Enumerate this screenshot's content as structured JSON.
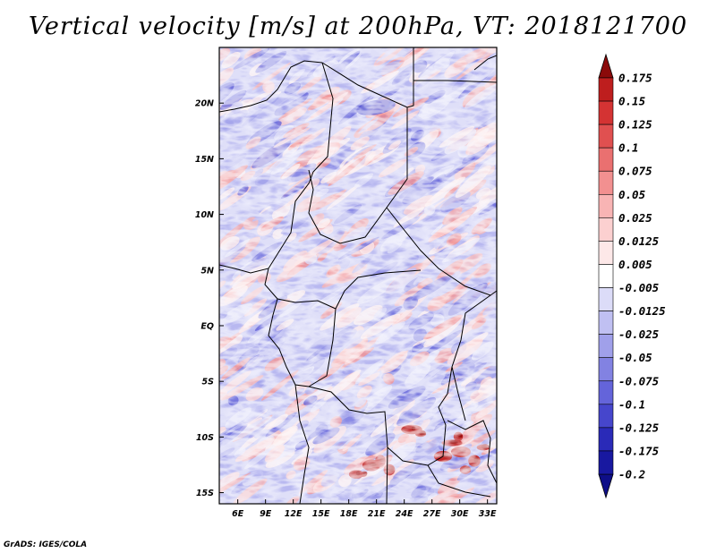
{
  "title": "Vertical velocity [m/s] at 200hPa, VT: 2018121700",
  "credit": "GrADS: IGES/COLA",
  "map": {
    "lon_range": [
      4,
      34
    ],
    "lat_range": [
      -16,
      25
    ],
    "lat_ticks": [
      {
        "value": 20,
        "label": "20N"
      },
      {
        "value": 15,
        "label": "15N"
      },
      {
        "value": 10,
        "label": "10N"
      },
      {
        "value": 5,
        "label": "5N"
      },
      {
        "value": 0,
        "label": "EQ"
      },
      {
        "value": -5,
        "label": "5S"
      },
      {
        "value": -10,
        "label": "10S"
      },
      {
        "value": -15,
        "label": "15S"
      }
    ],
    "lon_ticks": [
      {
        "value": 6,
        "label": "6E"
      },
      {
        "value": 9,
        "label": "9E"
      },
      {
        "value": 12,
        "label": "12E"
      },
      {
        "value": 15,
        "label": "15E"
      },
      {
        "value": 18,
        "label": "18E"
      },
      {
        "value": 21,
        "label": "21E"
      },
      {
        "value": 24,
        "label": "24E"
      },
      {
        "value": 27,
        "label": "27E"
      },
      {
        "value": 30,
        "label": "30E"
      },
      {
        "value": 33,
        "label": "33E"
      }
    ]
  },
  "colorbar": {
    "levels": [
      {
        "label": "0.175",
        "color": "#a01010"
      },
      {
        "label": "0.15",
        "color": "#be1e1e"
      },
      {
        "label": "0.125",
        "color": "#d43333"
      },
      {
        "label": "0.1",
        "color": "#e05050"
      },
      {
        "label": "0.075",
        "color": "#ea7070"
      },
      {
        "label": "0.05",
        "color": "#f29090"
      },
      {
        "label": "0.025",
        "color": "#f8b4b4"
      },
      {
        "label": "0.0125",
        "color": "#fcd0d0"
      },
      {
        "label": "0.005",
        "color": "#fde8e8"
      },
      {
        "label": "-0.005",
        "color": "#ffffff"
      },
      {
        "label": "-0.0125",
        "color": "#dcdcf8"
      },
      {
        "label": "-0.025",
        "color": "#c0c0f2"
      },
      {
        "label": "-0.05",
        "color": "#a0a0ea"
      },
      {
        "label": "-0.075",
        "color": "#8282e2"
      },
      {
        "label": "-0.1",
        "color": "#6464da"
      },
      {
        "label": "-0.125",
        "color": "#4646cc"
      },
      {
        "label": "-0.175",
        "color": "#2a2ab8"
      },
      {
        "label": "-0.2",
        "color": "#1818a0"
      }
    ],
    "top_arrow_color": "#8b0a0a",
    "bottom_arrow_color": "#0e0e88"
  }
}
